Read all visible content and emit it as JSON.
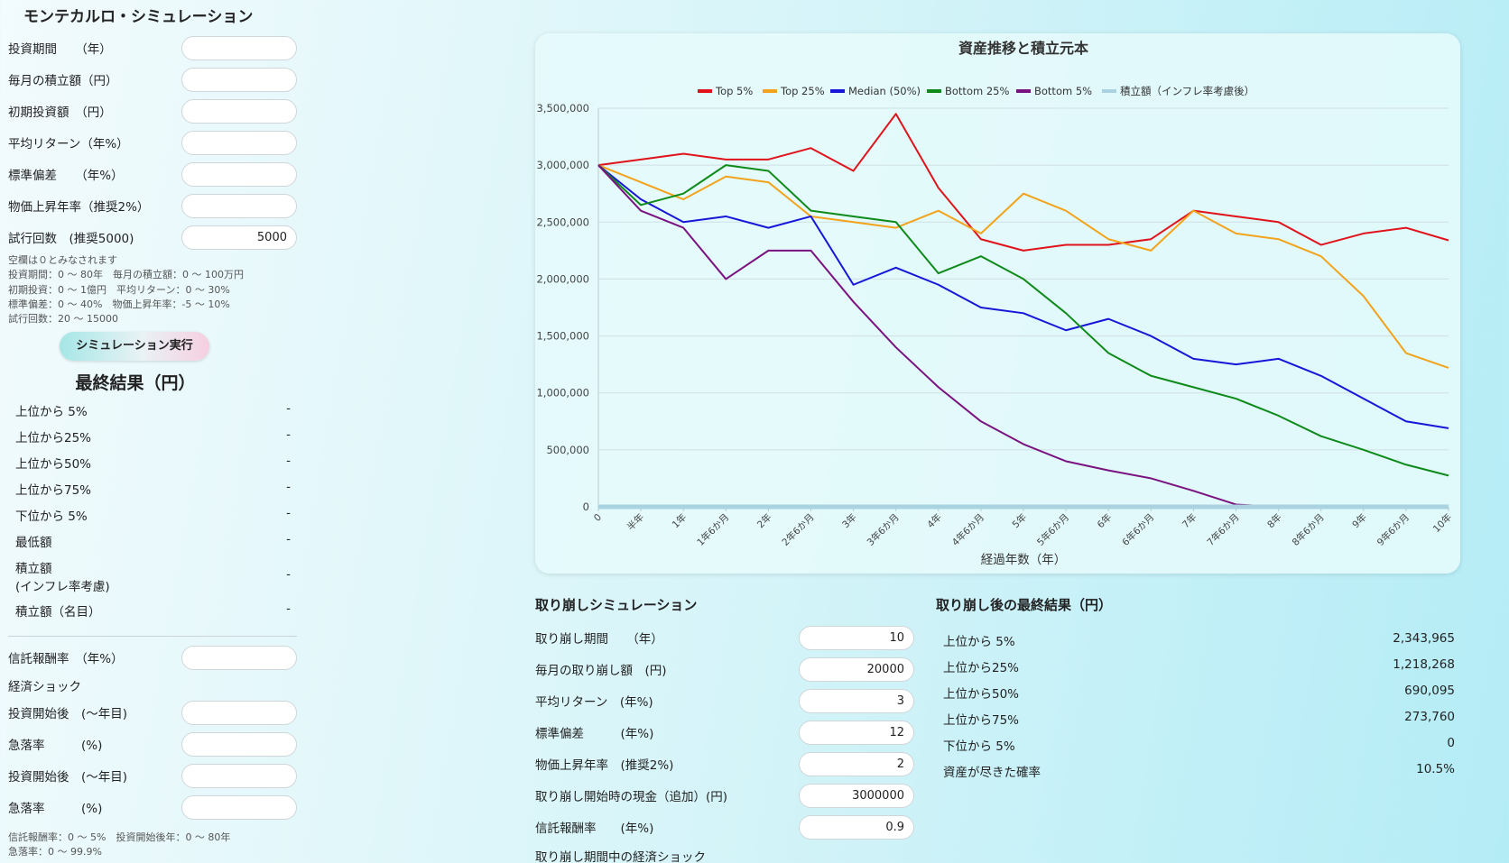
{
  "app_title": "モンテカルロ・シミュレーション",
  "inputs": [
    {
      "label": "投資期間　　（年）",
      "value": ""
    },
    {
      "label": "毎月の積立額（円）",
      "value": ""
    },
    {
      "label": "初期投資額　（円）",
      "value": ""
    },
    {
      "label": "平均リターン（年%）",
      "value": ""
    },
    {
      "label": "標準偏差　　（年%）",
      "value": ""
    },
    {
      "label": "物価上昇年率（推奨2%）",
      "value": ""
    },
    {
      "label": "試行回数　(推奨5000)",
      "value": "5000"
    }
  ],
  "notes": [
    "空欄は０とみなされます",
    "投資期間：0 〜 80年　毎月の積立額：0 〜 100万円",
    "初期投資：0 〜 1億円　平均リターン：0 〜 30%",
    "標準偏差：0 〜 40%　物価上昇年率：-5 〜 10%",
    "試行回数：20 〜 15000"
  ],
  "run_button": "シミュレーション実行",
  "final_results_title": "最終結果（円）",
  "final_results": [
    {
      "label": "上位から 5%",
      "value": "-"
    },
    {
      "label": "上位から25%",
      "value": "-"
    },
    {
      "label": "上位から50%",
      "value": "-"
    },
    {
      "label": "上位から75%",
      "value": "-"
    },
    {
      "label": "下位から 5%",
      "value": "-"
    },
    {
      "label": "最低額",
      "value": "-"
    },
    {
      "label": "積立額",
      "label2": "(インフレ率考慮)",
      "value": "-"
    },
    {
      "label": "積立額（名目）",
      "value": "-"
    }
  ],
  "fee_inputs": [
    {
      "label": "信託報酬率　（年%）",
      "value": ""
    }
  ],
  "shock_title": "経済ショック",
  "shock_inputs": [
    {
      "label": "投資開始後　(〜年目)",
      "value": ""
    },
    {
      "label": "急落率　　　(%)",
      "value": ""
    },
    {
      "label": "投資開始後　(〜年目)",
      "value": ""
    },
    {
      "label": "急落率　　　(%)",
      "value": ""
    }
  ],
  "notes2": [
    "信託報酬率：0 〜 5%　投資開始後年：0 〜 80年",
    "急落率：0 〜 99.9%"
  ],
  "withdraw": {
    "title": "取り崩しシミュレーション",
    "inputs": [
      {
        "label": "取り崩し期間　　（年）",
        "value": "10"
      },
      {
        "label": "毎月の取り崩し額　(円)",
        "value": "20000"
      },
      {
        "label": "平均リターン　(年%)",
        "value": "3"
      },
      {
        "label": "標準偏差　　　(年%)",
        "value": "12"
      },
      {
        "label": "物価上昇年率　(推奨2%)",
        "value": "2"
      },
      {
        "label": "取り崩し開始時の現金（追加）(円)",
        "value": "3000000"
      },
      {
        "label": "信託報酬率　　(年%)",
        "value": "0.9"
      }
    ],
    "shock_title": "取り崩し期間中の経済ショック"
  },
  "withdraw_results": {
    "title": "取り崩し後の最終結果（円）",
    "rows": [
      {
        "label": "上位から 5%",
        "value": "2,343,965"
      },
      {
        "label": "上位から25%",
        "value": "1,218,268"
      },
      {
        "label": "上位から50%",
        "value": "690,095"
      },
      {
        "label": "上位から75%",
        "value": "273,760"
      },
      {
        "label": "下位から 5%",
        "value": "0"
      },
      {
        "label": "資産が尽きた確率",
        "value": "10.5%"
      }
    ]
  },
  "chart_data": {
    "type": "line",
    "title": "資産推移と積立元本",
    "xlabel": "経過年数（年）",
    "ylabel": "",
    "x_tick_labels": [
      "0",
      "半年",
      "1年",
      "1年6か月",
      "2年",
      "2年6か月",
      "3年",
      "3年6か月",
      "4年",
      "4年6か月",
      "5年",
      "5年6か月",
      "6年",
      "6年6か月",
      "7年",
      "7年6か月",
      "8年",
      "8年6か月",
      "9年",
      "9年6か月",
      "10年"
    ],
    "y_tick_labels": [
      "3,500,000",
      "3,000,000",
      "2,500,000",
      "2,000,000",
      "1,500,000",
      "1,000,000",
      "500,000",
      "0"
    ],
    "ylim": [
      0,
      3500000
    ],
    "xlim": [
      0,
      10
    ],
    "legend_position": "top",
    "grid": true,
    "x": [
      0,
      0.5,
      1,
      1.5,
      2,
      2.5,
      3,
      3.5,
      4,
      4.5,
      5,
      5.5,
      6,
      6.5,
      7,
      7.5,
      8,
      8.5,
      9,
      9.5,
      10
    ],
    "series": [
      {
        "name": "Top 5%",
        "color": "#e0131b",
        "values": [
          3000000,
          3050000,
          3100000,
          3050000,
          3050000,
          3150000,
          2950000,
          3450000,
          2800000,
          2350000,
          2250000,
          2300000,
          2300000,
          2350000,
          2600000,
          2550000,
          2500000,
          2300000,
          2400000,
          2450000,
          2340000
        ]
      },
      {
        "name": "Top 25%",
        "color": "#f2a31b",
        "values": [
          3000000,
          2850000,
          2700000,
          2900000,
          2850000,
          2550000,
          2500000,
          2450000,
          2600000,
          2400000,
          2750000,
          2600000,
          2350000,
          2250000,
          2600000,
          2400000,
          2350000,
          2200000,
          1850000,
          1350000,
          1220000
        ]
      },
      {
        "name": "Median (50%)",
        "color": "#1616d8",
        "values": [
          3000000,
          2700000,
          2500000,
          2550000,
          2450000,
          2550000,
          1950000,
          2100000,
          1950000,
          1750000,
          1700000,
          1550000,
          1650000,
          1500000,
          1300000,
          1250000,
          1300000,
          1150000,
          950000,
          750000,
          690000
        ]
      },
      {
        "name": "Bottom 25%",
        "color": "#0e8a1a",
        "values": [
          3000000,
          2650000,
          2750000,
          3000000,
          2950000,
          2600000,
          2550000,
          2500000,
          2050000,
          2200000,
          2000000,
          1700000,
          1350000,
          1150000,
          1050000,
          950000,
          800000,
          620000,
          500000,
          370000,
          274000
        ]
      },
      {
        "name": "Bottom 5%",
        "color": "#7a1280",
        "values": [
          3000000,
          2600000,
          2450000,
          2000000,
          2250000,
          2250000,
          1800000,
          1400000,
          1050000,
          750000,
          550000,
          400000,
          320000,
          250000,
          140000,
          20000,
          0,
          0,
          0,
          0,
          0
        ]
      },
      {
        "name": "積立額（インフレ率考慮後）",
        "color": "#a9d3e0",
        "values": [
          0,
          0,
          0,
          0,
          0,
          0,
          0,
          0,
          0,
          0,
          0,
          0,
          0,
          0,
          0,
          0,
          0,
          0,
          0,
          0,
          0
        ]
      }
    ]
  }
}
